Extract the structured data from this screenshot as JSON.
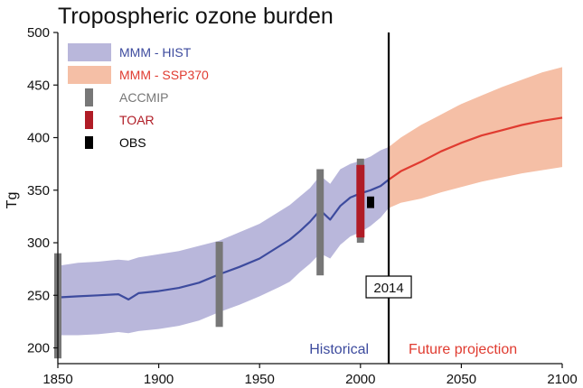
{
  "chart_data": {
    "type": "line",
    "title": "Tropospheric ozone burden",
    "xlabel": "",
    "ylabel": "Tg",
    "xlim": [
      1850,
      2100
    ],
    "ylim": [
      185,
      500
    ],
    "x_ticks": [
      1850,
      1900,
      1950,
      2000,
      2050,
      2100
    ],
    "y_ticks": [
      200,
      250,
      300,
      350,
      400,
      450,
      500
    ],
    "grid": false,
    "legend_position": "top-left",
    "series": [
      {
        "name": "MMM - HIST",
        "kind": "mean-with-range",
        "line_color": "#3d4b9e",
        "band_color": "#b9b7db",
        "x": [
          1850,
          1860,
          1870,
          1880,
          1885,
          1890,
          1900,
          1910,
          1920,
          1930,
          1940,
          1950,
          1960,
          1965,
          1970,
          1975,
          1980,
          1985,
          1990,
          1995,
          2000,
          2005,
          2010,
          2014
        ],
        "mean": [
          248,
          249,
          250,
          251,
          246,
          252,
          254,
          257,
          262,
          270,
          277,
          285,
          297,
          303,
          311,
          320,
          331,
          322,
          335,
          343,
          347,
          350,
          354,
          360
        ],
        "low": [
          212,
          212,
          213,
          215,
          214,
          216,
          218,
          221,
          226,
          234,
          241,
          249,
          258,
          263,
          272,
          280,
          290,
          285,
          298,
          306,
          310,
          316,
          324,
          333
        ],
        "high": [
          278,
          281,
          282,
          284,
          283,
          286,
          289,
          292,
          297,
          302,
          310,
          318,
          330,
          336,
          344,
          352,
          364,
          356,
          370,
          375,
          378,
          382,
          388,
          391
        ]
      },
      {
        "name": "MMM - SSP370",
        "kind": "mean-with-range",
        "line_color": "#e03b30",
        "band_color": "#f5bfa6",
        "x": [
          2014,
          2020,
          2030,
          2040,
          2050,
          2060,
          2070,
          2080,
          2090,
          2100
        ],
        "mean": [
          360,
          368,
          377,
          387,
          395,
          402,
          407,
          412,
          416,
          419
        ],
        "low": [
          333,
          338,
          342,
          348,
          353,
          358,
          362,
          366,
          369,
          372
        ],
        "high": [
          391,
          400,
          412,
          422,
          432,
          440,
          448,
          455,
          462,
          467
        ]
      }
    ],
    "observations": [
      {
        "name": "ACCMIP",
        "color": "#777777",
        "ranges": [
          {
            "x": 1850,
            "low": 190,
            "high": 290
          },
          {
            "x": 1930,
            "low": 220,
            "high": 301
          },
          {
            "x": 1980,
            "low": 269,
            "high": 370
          },
          {
            "x": 2000,
            "low": 300,
            "high": 380
          }
        ]
      },
      {
        "name": "TOAR",
        "color": "#b01c26",
        "ranges": [
          {
            "x": 2000,
            "low": 305,
            "high": 374
          }
        ]
      },
      {
        "name": "OBS",
        "color": "#000000",
        "ranges": [
          {
            "x": 2005,
            "low": 333,
            "high": 344
          }
        ]
      }
    ],
    "vertical_line": {
      "x": 2014,
      "label": "2014"
    },
    "annotations": [
      {
        "text": "Historical",
        "color": "#3d4b9e"
      },
      {
        "text": "Future projection",
        "color": "#e03b30"
      }
    ]
  }
}
